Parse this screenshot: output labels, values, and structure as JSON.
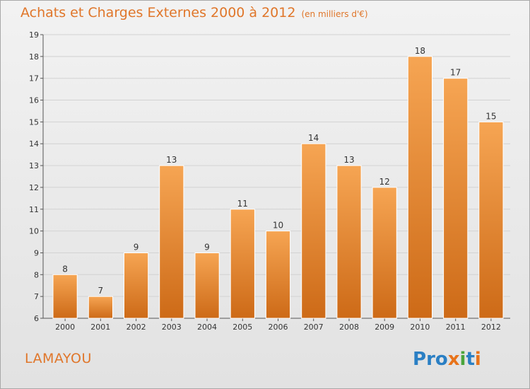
{
  "title": "Achats et Charges Externes 2000 à 2012",
  "title_unit": "(en milliers d'€)",
  "location": "LAMAYOU",
  "logo_text": "Proxiti",
  "colors": {
    "accent": "#e0762a",
    "bar_top": "#f6a553",
    "bar_bottom": "#cd6a17",
    "background": "#e8e8e8"
  },
  "chart_data": {
    "type": "bar",
    "title": "Achats et Charges Externes 2000 à 2012",
    "subtitle": "(en milliers d'€)",
    "categories": [
      "2000",
      "2001",
      "2002",
      "2003",
      "2004",
      "2005",
      "2006",
      "2007",
      "2008",
      "2009",
      "2010",
      "2011",
      "2012"
    ],
    "values": [
      8,
      7,
      9,
      13,
      9,
      11,
      10,
      14,
      13,
      12,
      18,
      17,
      15
    ],
    "ylim": [
      6,
      19
    ],
    "yticks": [
      6,
      7,
      8,
      9,
      10,
      11,
      12,
      13,
      14,
      15,
      16,
      17,
      18,
      19
    ],
    "grid": "horizontal",
    "legend": "none",
    "data_labels": true
  }
}
